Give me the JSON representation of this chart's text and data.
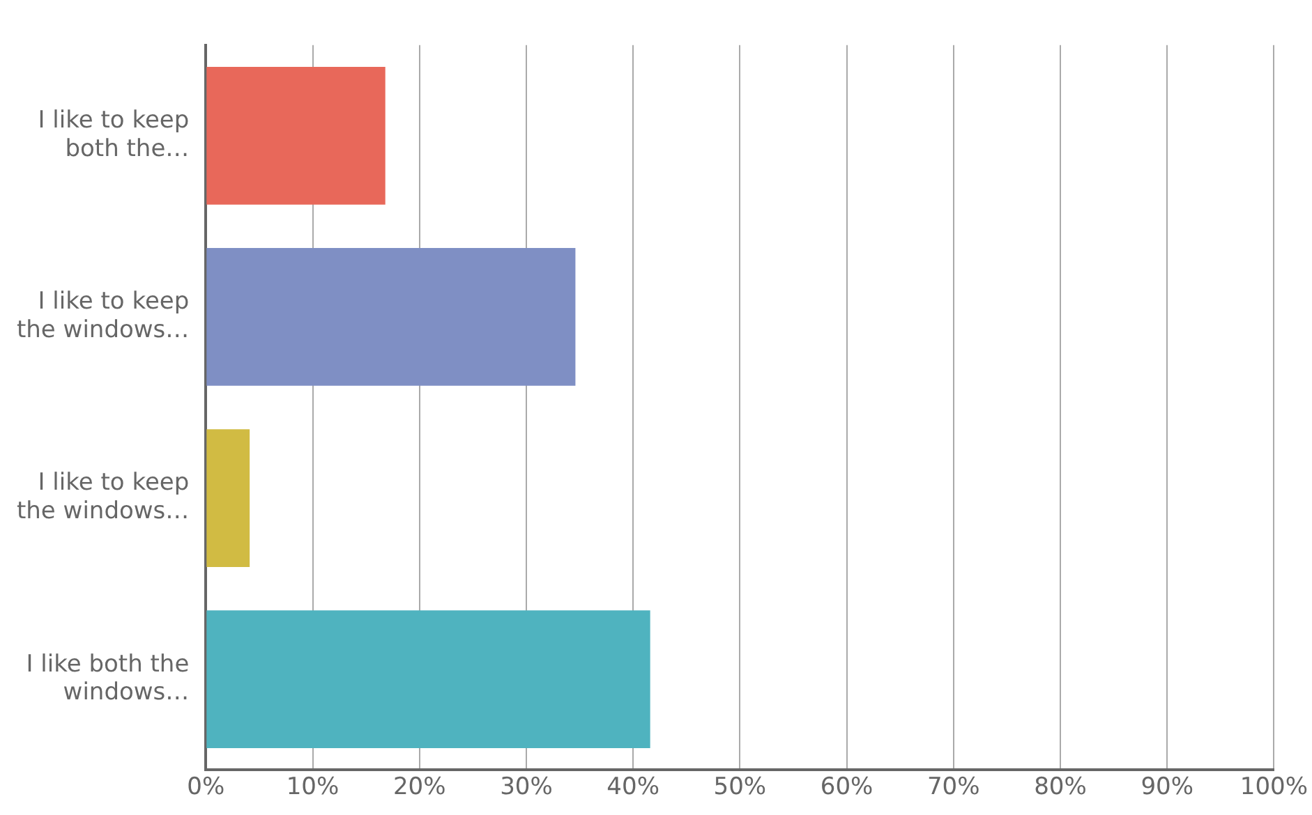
{
  "chart_data": {
    "type": "bar",
    "orientation": "horizontal",
    "categories": [
      "I like to keep both the…",
      "I like to keep the windows…",
      "I like to keep the windows…",
      "I like both the windows…"
    ],
    "values": [
      16.8,
      34.6,
      4.1,
      41.6
    ],
    "colors": [
      "#e8685a",
      "#7f8fc4",
      "#d1bb43",
      "#4fb3bf"
    ],
    "xlim": [
      0,
      100
    ],
    "xticks": [
      {
        "value": 0,
        "label": "0%"
      },
      {
        "value": 10,
        "label": "10%"
      },
      {
        "value": 20,
        "label": "20%"
      },
      {
        "value": 30,
        "label": "30%"
      },
      {
        "value": 40,
        "label": "40%"
      },
      {
        "value": 50,
        "label": "50%"
      },
      {
        "value": 60,
        "label": "60%"
      },
      {
        "value": 70,
        "label": "70%"
      },
      {
        "value": 80,
        "label": "80%"
      },
      {
        "value": 90,
        "label": "90%"
      },
      {
        "value": 100,
        "label": "100%"
      }
    ],
    "grid": "x",
    "legend": false
  }
}
